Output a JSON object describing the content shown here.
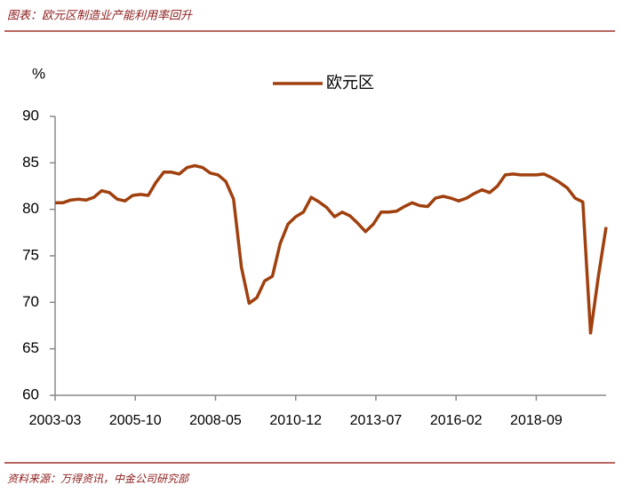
{
  "header": {
    "title": "图表：欧元区制造业产能利用率回升"
  },
  "footer": {
    "source": "资料来源：万得资讯，中金公司研究部"
  },
  "chart_data": {
    "type": "line",
    "y_label": "%",
    "x": [
      "2003-03",
      "2003-06",
      "2003-09",
      "2003-12",
      "2004-03",
      "2004-06",
      "2004-09",
      "2004-12",
      "2005-03",
      "2005-06",
      "2005-09",
      "2005-12",
      "2006-03",
      "2006-06",
      "2006-09",
      "2006-12",
      "2007-03",
      "2007-06",
      "2007-09",
      "2007-12",
      "2008-03",
      "2008-06",
      "2008-09",
      "2008-12",
      "2009-03",
      "2009-06",
      "2009-09",
      "2009-12",
      "2010-03",
      "2010-06",
      "2010-09",
      "2010-12",
      "2011-03",
      "2011-06",
      "2011-09",
      "2011-12",
      "2012-03",
      "2012-06",
      "2012-09",
      "2012-12",
      "2013-03",
      "2013-06",
      "2013-09",
      "2013-12",
      "2014-03",
      "2014-06",
      "2014-09",
      "2014-12",
      "2015-03",
      "2015-06",
      "2015-09",
      "2015-12",
      "2016-03",
      "2016-06",
      "2016-09",
      "2016-12",
      "2017-03",
      "2017-06",
      "2017-09",
      "2017-12",
      "2018-03",
      "2018-06",
      "2018-09",
      "2018-12",
      "2019-03",
      "2019-06",
      "2019-09",
      "2019-12",
      "2020-03",
      "2020-06",
      "2020-09",
      "2020-12"
    ],
    "series": [
      {
        "name": "欧元区",
        "color": "#a0400f",
        "values": [
          80.7,
          80.7,
          81.0,
          81.1,
          81.0,
          81.3,
          82.0,
          81.8,
          81.1,
          80.9,
          81.5,
          81.6,
          81.5,
          82.9,
          84.0,
          84.0,
          83.8,
          84.5,
          84.7,
          84.5,
          83.9,
          83.7,
          83.0,
          81.1,
          73.8,
          69.9,
          70.5,
          72.3,
          72.8,
          76.3,
          78.4,
          79.2,
          79.7,
          81.3,
          80.8,
          80.2,
          79.2,
          79.7,
          79.3,
          78.5,
          77.6,
          78.4,
          79.7,
          79.7,
          79.8,
          80.3,
          80.7,
          80.4,
          80.3,
          81.2,
          81.4,
          81.2,
          80.9,
          81.2,
          81.7,
          82.1,
          81.8,
          82.5,
          83.7,
          83.8,
          83.7,
          83.7,
          83.7,
          83.8,
          83.4,
          82.9,
          82.3,
          81.2,
          80.8,
          66.7,
          72.8,
          78.1
        ]
      }
    ],
    "xticks": [
      "2003-03",
      "2005-10",
      "2008-05",
      "2010-12",
      "2013-07",
      "2016-02",
      "2018-09"
    ],
    "ylim": [
      60,
      90
    ],
    "yticks": [
      60,
      65,
      70,
      75,
      80,
      85,
      90
    ],
    "legend": "top"
  }
}
